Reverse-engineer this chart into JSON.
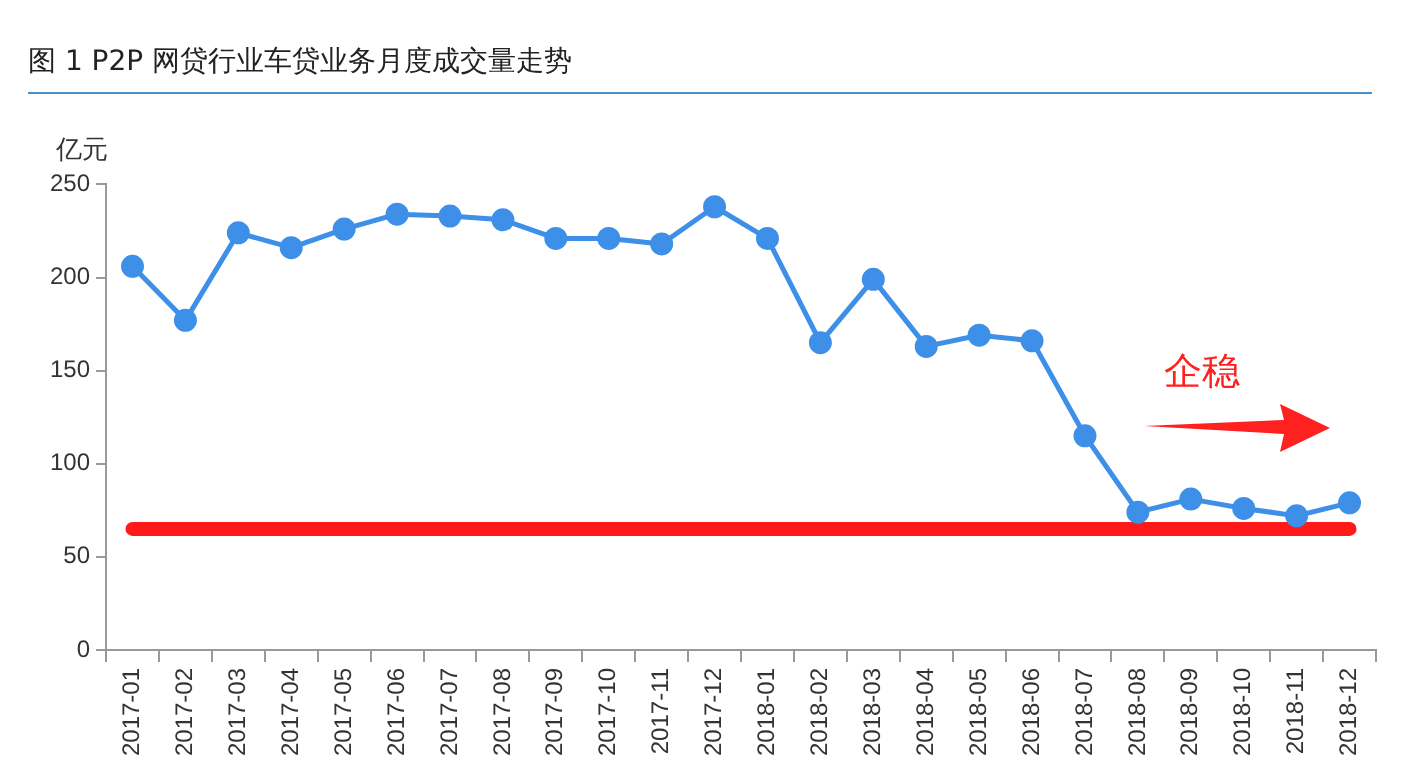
{
  "chart_data": {
    "type": "line",
    "title": "图 1 P2P 网贷行业车贷业务月度成交量走势",
    "ylabel": "亿元",
    "categories": [
      "2017-01",
      "2017-02",
      "2017-03",
      "2017-04",
      "2017-05",
      "2017-06",
      "2017-07",
      "2017-08",
      "2017-09",
      "2017-10",
      "2017-11",
      "2017-12",
      "2018-01",
      "2018-02",
      "2018-03",
      "2018-04",
      "2018-05",
      "2018-06",
      "2018-07",
      "2018-08",
      "2018-09",
      "2018-10",
      "2018-11",
      "2018-12"
    ],
    "series": [
      {
        "color": "#3d8fe8",
        "values": [
          206,
          177,
          224,
          216,
          226,
          234,
          233,
          231,
          221,
          221,
          218,
          238,
          221,
          165,
          199,
          163,
          169,
          166,
          115,
          74,
          81,
          76,
          72,
          79
        ]
      }
    ],
    "ylim": [
      0,
      250
    ],
    "yticks": [
      0,
      50,
      100,
      150,
      200,
      250
    ],
    "grid": false,
    "legend": false,
    "marker": "circle",
    "line_style": "solid",
    "ref_lines": [
      {
        "axis": "y",
        "value": 65,
        "color": "#ff1a1a"
      }
    ],
    "annotations": [
      "企稳"
    ]
  }
}
